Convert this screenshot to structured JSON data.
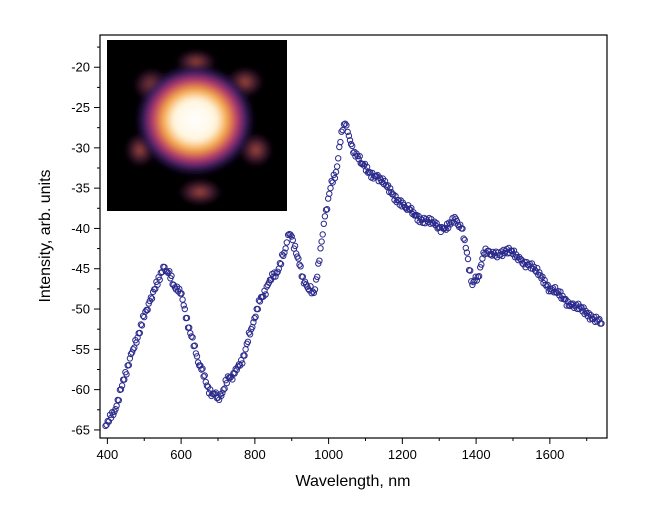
{
  "chart_data": {
    "type": "scatter",
    "title": "",
    "xlabel": "Wavelength, nm",
    "ylabel": "Intensity, arb. units",
    "xlim": [
      380,
      1755
    ],
    "ylim": [
      -66,
      -16
    ],
    "xticks": [
      400,
      600,
      800,
      1000,
      1200,
      1400,
      1600
    ],
    "xtick_labels": [
      "400",
      "600",
      "800",
      "1000",
      "1200",
      "1400",
      "1600"
    ],
    "yticks": [
      -65,
      -60,
      -55,
      -50,
      -45,
      -40,
      -35,
      -30,
      -25,
      -20
    ],
    "ytick_labels": [
      "-65",
      "-60",
      "-55",
      "-50",
      "-45",
      "-40",
      "-35",
      "-30",
      "-25",
      "-20"
    ],
    "grid": false,
    "legend": "none",
    "marker": "open-circle",
    "marker_color": "#2b2a8c",
    "inset": "bright elliptical spot image (top-left)",
    "series": [
      {
        "x": [
          395,
          410,
          425,
          440,
          455,
          470,
          485,
          500,
          515,
          530,
          545,
          555,
          565,
          580,
          595,
          610,
          625,
          640,
          655,
          670,
          685,
          700,
          715,
          730,
          745,
          760,
          775,
          790,
          805,
          820,
          835,
          850,
          865,
          880,
          890,
          900,
          915,
          930,
          945,
          960,
          975,
          990,
          1005,
          1020,
          1035,
          1045,
          1055,
          1070,
          1090,
          1110,
          1130,
          1150,
          1170,
          1190,
          1210,
          1230,
          1250,
          1270,
          1290,
          1310,
          1330,
          1345,
          1360,
          1375,
          1390,
          1405,
          1420,
          1440,
          1460,
          1480,
          1500,
          1520,
          1540,
          1560,
          1580,
          1600,
          1620,
          1640,
          1660,
          1680,
          1700,
          1720,
          1740
        ],
        "y": [
          -64.5,
          -63.5,
          -62.0,
          -59.5,
          -57.0,
          -55.0,
          -53.0,
          -51.0,
          -49.0,
          -47.5,
          -45.5,
          -44.8,
          -45.5,
          -47.0,
          -47.5,
          -50.0,
          -53.0,
          -55.5,
          -57.5,
          -59.5,
          -60.5,
          -61.0,
          -60.0,
          -58.5,
          -58.0,
          -57.0,
          -55.0,
          -52.5,
          -50.0,
          -48.5,
          -47.0,
          -46.0,
          -45.0,
          -43.0,
          -40.8,
          -41.0,
          -43.5,
          -46.0,
          -47.5,
          -48.0,
          -44.0,
          -38.5,
          -35.0,
          -33.0,
          -28.0,
          -27.0,
          -28.5,
          -30.5,
          -32.0,
          -33.0,
          -33.5,
          -34.5,
          -35.5,
          -36.5,
          -37.5,
          -38.0,
          -38.8,
          -39.2,
          -39.6,
          -40.0,
          -39.5,
          -38.8,
          -40.0,
          -43.0,
          -47.0,
          -46.0,
          -43.0,
          -43.2,
          -43.0,
          -42.8,
          -43.2,
          -43.8,
          -44.5,
          -45.2,
          -46.0,
          -47.5,
          -48.0,
          -48.8,
          -49.5,
          -50.0,
          -50.5,
          -51.0,
          -51.8
        ]
      }
    ]
  }
}
